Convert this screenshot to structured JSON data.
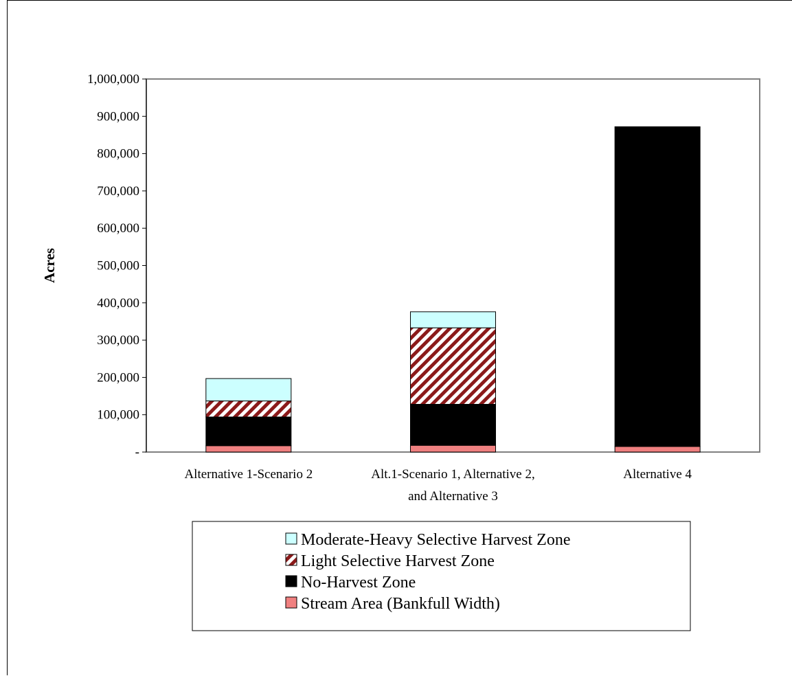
{
  "chart_data": {
    "type": "bar",
    "stacked": true,
    "ylabel": "Acres",
    "ylim": [
      0,
      1000000
    ],
    "yticks": [
      {
        "value": 0,
        "label": "-"
      },
      {
        "value": 100000,
        "label": "100,000"
      },
      {
        "value": 200000,
        "label": "200,000"
      },
      {
        "value": 300000,
        "label": "300,000"
      },
      {
        "value": 400000,
        "label": "400,000"
      },
      {
        "value": 500000,
        "label": "500,000"
      },
      {
        "value": 600000,
        "label": "600,000"
      },
      {
        "value": 700000,
        "label": "700,000"
      },
      {
        "value": 800000,
        "label": "800,000"
      },
      {
        "value": 900000,
        "label": "900,000"
      },
      {
        "value": 1000000,
        "label": "1,000,000"
      }
    ],
    "categories": [
      [
        "Alternative 1-Scenario 2"
      ],
      [
        "Alt.1-Scenario 1, Alternative 2,",
        "and Alternative 3"
      ],
      [
        "Alternative 4"
      ]
    ],
    "series": [
      {
        "name": "Stream Area (Bankfull Width)",
        "values": [
          17000,
          18000,
          15000
        ],
        "color": "#f08080",
        "pattern": "solid"
      },
      {
        "name": "No-Harvest Zone",
        "values": [
          77000,
          110000,
          857000
        ],
        "color": "#000000",
        "pattern": "solid"
      },
      {
        "name": "Light Selective Harvest Zone",
        "values": [
          43000,
          205000,
          0
        ],
        "color": "#8b1a1a",
        "pattern": "hatch"
      },
      {
        "name": "Moderate-Heavy Selective Harvest Zone",
        "values": [
          60000,
          43000,
          0
        ],
        "color": "#ccffff",
        "pattern": "solid"
      }
    ],
    "legend_order": [
      3,
      2,
      1,
      0
    ],
    "legend_position": "bottom",
    "grid": false
  }
}
